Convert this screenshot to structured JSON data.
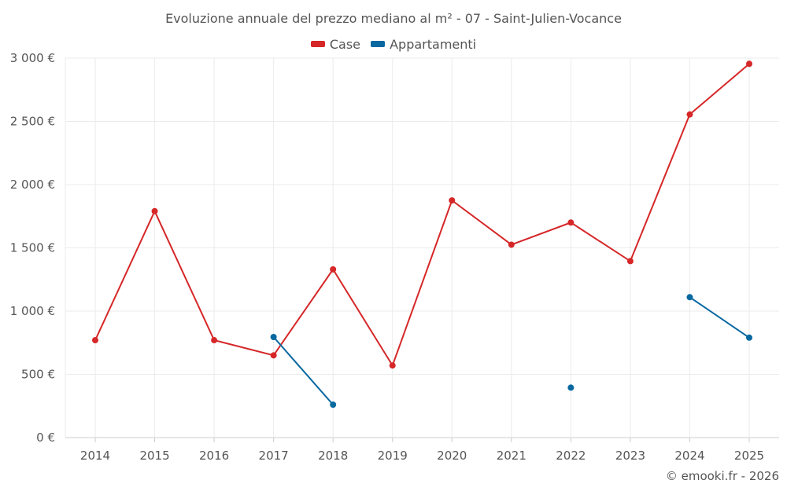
{
  "chart_data": {
    "type": "line",
    "title": "Evoluzione annuale del prezzo mediano al m² - 07 - Saint-Julien-Vocance",
    "x": [
      "2014",
      "2015",
      "2016",
      "2017",
      "2018",
      "2019",
      "2020",
      "2021",
      "2022",
      "2023",
      "2024",
      "2025"
    ],
    "ylim": [
      0,
      3000
    ],
    "yticks": [
      0,
      500,
      1000,
      1500,
      2000,
      2500,
      3000
    ],
    "ytick_labels": [
      "0 €",
      "500 €",
      "1 000 €",
      "1 500 €",
      "2 000 €",
      "2 500 €",
      "3 000 €"
    ],
    "grid": true,
    "legend_position": "top-center",
    "series": [
      {
        "name": "Case",
        "color": "#d62728",
        "values": [
          770,
          1790,
          770,
          650,
          1330,
          570,
          1875,
          1525,
          1700,
          1395,
          2555,
          2955
        ]
      },
      {
        "name": "Appartamenti",
        "color": "#0868a0",
        "values": [
          null,
          null,
          null,
          795,
          260,
          null,
          null,
          null,
          395,
          null,
          1110,
          790
        ]
      }
    ]
  },
  "credit": "© emooki.fr - 2026"
}
